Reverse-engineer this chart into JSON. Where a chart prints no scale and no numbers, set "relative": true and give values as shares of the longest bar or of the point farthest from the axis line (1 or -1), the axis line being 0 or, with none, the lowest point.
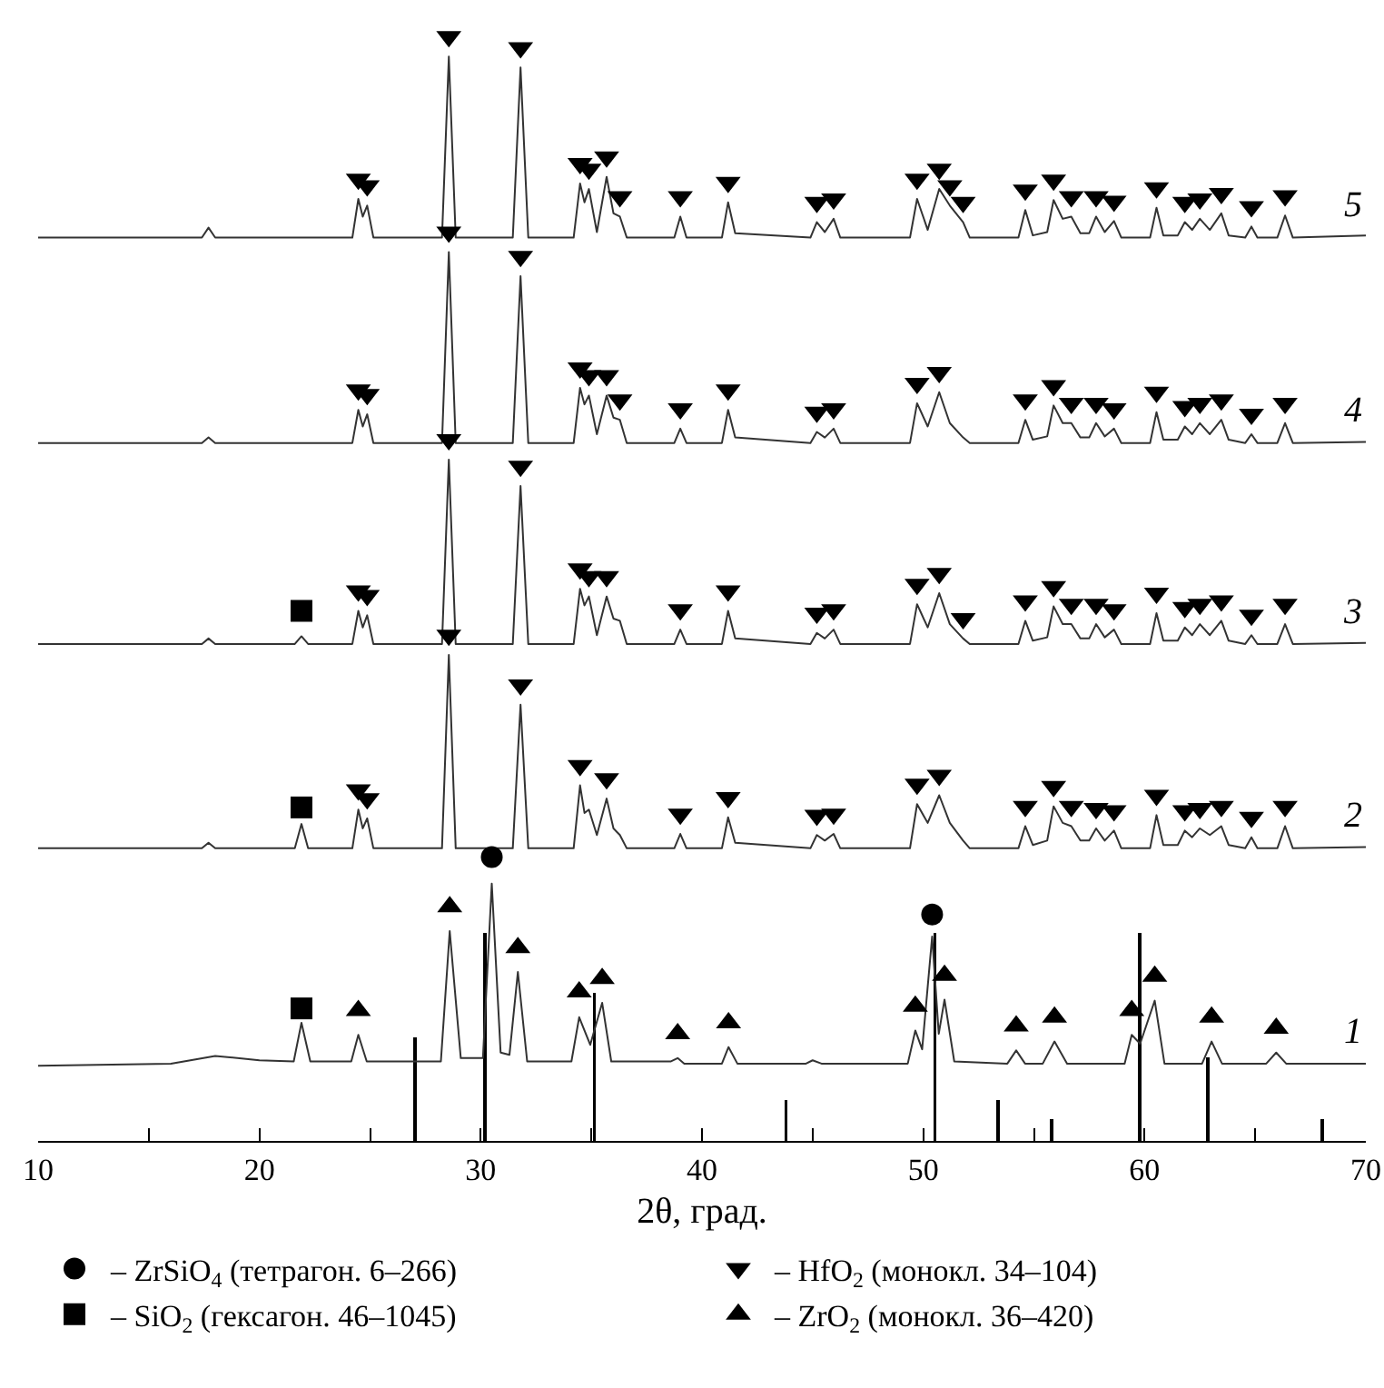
{
  "chart_data": {
    "type": "line",
    "relative": true,
    "xlabel": "2θ, град.",
    "xlim": [
      10,
      70
    ],
    "xticks": [
      10,
      {
        "value": 15,
        "label": null
      },
      20,
      {
        "value": 25,
        "label": null
      },
      30,
      {
        "value": 35,
        "label": null
      },
      40,
      {
        "value": 45,
        "label": null
      },
      50,
      {
        "value": 55,
        "label": null
      },
      60,
      {
        "value": 65,
        "label": null
      },
      70
    ],
    "grid": false,
    "legend": "bottom",
    "series": [
      {
        "name": "5",
        "color": "#333333",
        "marker": "none",
        "x": [
          10,
          17.4,
          17.7,
          18.0,
          21.6,
          21.9,
          22.2,
          24.2,
          24.47,
          24.67,
          24.87,
          25.15,
          28.25,
          28.56,
          28.87,
          31.45,
          31.8,
          32.15,
          34.2,
          34.49,
          34.69,
          34.89,
          35.25,
          35.69,
          36.0,
          36.29,
          36.6,
          38.75,
          39.02,
          39.3,
          40.9,
          41.18,
          41.5,
          44.9,
          45.19,
          45.55,
          45.95,
          46.25,
          49.4,
          49.72,
          50.2,
          50.72,
          51.2,
          51.8,
          52.1,
          54.3,
          54.61,
          54.95,
          55.6,
          55.89,
          56.3,
          56.69,
          57.1,
          57.5,
          57.81,
          58.2,
          58.62,
          58.95,
          60.25,
          60.54,
          60.85,
          61.5,
          61.82,
          62.15,
          62.5,
          62.95,
          63.47,
          63.8,
          64.55,
          64.83,
          65.1,
          66.0,
          66.35,
          66.7,
          70
        ],
        "values": [
          0.818,
          0.818,
          0.827,
          0.818,
          0.818,
          0.818,
          0.818,
          0.818,
          0.853,
          0.837,
          0.847,
          0.818,
          0.818,
          0.982,
          0.818,
          0.818,
          0.972,
          0.818,
          0.818,
          0.867,
          0.85,
          0.862,
          0.823,
          0.873,
          0.84,
          0.837,
          0.818,
          0.818,
          0.837,
          0.818,
          0.818,
          0.85,
          0.822,
          0.818,
          0.832,
          0.823,
          0.835,
          0.818,
          0.818,
          0.853,
          0.825,
          0.862,
          0.847,
          0.832,
          0.818,
          0.818,
          0.843,
          0.82,
          0.823,
          0.852,
          0.835,
          0.837,
          0.822,
          0.822,
          0.837,
          0.823,
          0.833,
          0.818,
          0.818,
          0.845,
          0.82,
          0.82,
          0.832,
          0.825,
          0.835,
          0.825,
          0.84,
          0.82,
          0.818,
          0.828,
          0.818,
          0.818,
          0.838,
          0.818,
          0.82
        ]
      },
      {
        "name": "4",
        "color": "#333333",
        "marker": "none",
        "x": [
          10,
          17.4,
          17.7,
          18.0,
          21.6,
          21.9,
          22.2,
          24.2,
          24.47,
          24.67,
          24.87,
          25.15,
          28.25,
          28.56,
          28.87,
          31.45,
          31.8,
          32.15,
          34.2,
          34.49,
          34.69,
          34.89,
          35.25,
          35.69,
          36.0,
          36.29,
          36.6,
          38.75,
          39.02,
          39.3,
          40.9,
          41.18,
          41.5,
          44.9,
          45.19,
          45.55,
          45.95,
          46.25,
          49.4,
          49.72,
          50.2,
          50.72,
          51.2,
          51.8,
          52.1,
          54.3,
          54.61,
          54.95,
          55.6,
          55.89,
          56.3,
          56.69,
          57.1,
          57.5,
          57.81,
          58.2,
          58.62,
          58.95,
          60.25,
          60.54,
          60.85,
          61.5,
          61.82,
          62.15,
          62.5,
          62.95,
          63.47,
          63.8,
          64.55,
          64.83,
          65.1,
          66.0,
          66.35,
          66.7,
          70
        ],
        "values": [
          0.632,
          0.632,
          0.637,
          0.632,
          0.632,
          0.632,
          0.632,
          0.632,
          0.662,
          0.647,
          0.658,
          0.632,
          0.632,
          0.805,
          0.632,
          0.632,
          0.783,
          0.632,
          0.632,
          0.682,
          0.667,
          0.675,
          0.64,
          0.675,
          0.655,
          0.653,
          0.632,
          0.632,
          0.645,
          0.632,
          0.632,
          0.662,
          0.637,
          0.632,
          0.642,
          0.637,
          0.645,
          0.632,
          0.632,
          0.668,
          0.647,
          0.678,
          0.65,
          0.637,
          0.632,
          0.632,
          0.653,
          0.635,
          0.638,
          0.666,
          0.65,
          0.65,
          0.637,
          0.637,
          0.65,
          0.638,
          0.645,
          0.632,
          0.632,
          0.66,
          0.635,
          0.635,
          0.647,
          0.64,
          0.65,
          0.64,
          0.653,
          0.635,
          0.632,
          0.64,
          0.632,
          0.632,
          0.65,
          0.632,
          0.633
        ]
      },
      {
        "name": "3",
        "color": "#333333",
        "marker": "none",
        "x": [
          10,
          17.4,
          17.7,
          18.0,
          21.6,
          21.9,
          22.2,
          24.2,
          24.47,
          24.67,
          24.87,
          25.15,
          28.25,
          28.56,
          28.87,
          31.45,
          31.8,
          32.15,
          34.2,
          34.49,
          34.69,
          34.89,
          35.25,
          35.69,
          36.0,
          36.29,
          36.6,
          38.75,
          39.02,
          39.3,
          40.9,
          41.18,
          41.5,
          44.9,
          45.19,
          45.55,
          45.95,
          46.25,
          49.4,
          49.72,
          50.2,
          50.72,
          51.2,
          51.8,
          52.1,
          54.3,
          54.61,
          54.95,
          55.6,
          55.89,
          56.3,
          56.69,
          57.1,
          57.5,
          57.81,
          58.2,
          58.62,
          58.95,
          60.25,
          60.54,
          60.85,
          61.5,
          61.82,
          62.15,
          62.5,
          62.95,
          63.47,
          63.8,
          64.55,
          64.83,
          65.1,
          66.0,
          66.35,
          66.7,
          70
        ],
        "values": [
          0.45,
          0.45,
          0.455,
          0.45,
          0.45,
          0.457,
          0.45,
          0.45,
          0.48,
          0.465,
          0.476,
          0.45,
          0.45,
          0.617,
          0.45,
          0.45,
          0.593,
          0.45,
          0.45,
          0.5,
          0.485,
          0.493,
          0.458,
          0.493,
          0.473,
          0.471,
          0.45,
          0.45,
          0.463,
          0.45,
          0.45,
          0.48,
          0.455,
          0.45,
          0.46,
          0.455,
          0.463,
          0.45,
          0.45,
          0.486,
          0.465,
          0.496,
          0.468,
          0.455,
          0.45,
          0.45,
          0.471,
          0.453,
          0.456,
          0.484,
          0.468,
          0.468,
          0.455,
          0.455,
          0.468,
          0.456,
          0.463,
          0.45,
          0.45,
          0.478,
          0.453,
          0.453,
          0.465,
          0.458,
          0.468,
          0.458,
          0.471,
          0.453,
          0.45,
          0.458,
          0.45,
          0.45,
          0.468,
          0.45,
          0.451
        ]
      },
      {
        "name": "2",
        "color": "#333333",
        "marker": "none",
        "x": [
          10,
          17.4,
          17.7,
          18.0,
          21.6,
          21.9,
          22.2,
          24.2,
          24.47,
          24.67,
          24.87,
          25.15,
          28.25,
          28.56,
          28.87,
          31.45,
          31.8,
          32.15,
          34.2,
          34.49,
          34.69,
          34.89,
          35.25,
          35.69,
          36.0,
          36.29,
          36.6,
          38.75,
          39.02,
          39.3,
          40.9,
          41.18,
          41.5,
          44.9,
          45.19,
          45.55,
          45.95,
          46.25,
          49.4,
          49.72,
          50.2,
          50.72,
          51.2,
          51.8,
          52.1,
          54.3,
          54.61,
          54.95,
          55.6,
          55.89,
          56.3,
          56.69,
          57.1,
          57.5,
          57.81,
          58.2,
          58.62,
          58.95,
          60.25,
          60.54,
          60.85,
          61.5,
          61.82,
          62.15,
          62.5,
          62.95,
          63.47,
          63.8,
          64.55,
          64.83,
          65.1,
          66.0,
          66.35,
          66.7,
          70
        ],
        "values": [
          0.265,
          0.265,
          0.27,
          0.265,
          0.265,
          0.287,
          0.265,
          0.265,
          0.3,
          0.283,
          0.292,
          0.265,
          0.265,
          0.44,
          0.265,
          0.265,
          0.395,
          0.265,
          0.265,
          0.322,
          0.297,
          0.3,
          0.277,
          0.31,
          0.283,
          0.277,
          0.265,
          0.265,
          0.278,
          0.265,
          0.265,
          0.293,
          0.27,
          0.265,
          0.277,
          0.272,
          0.278,
          0.265,
          0.265,
          0.305,
          0.288,
          0.313,
          0.288,
          0.272,
          0.265,
          0.265,
          0.285,
          0.268,
          0.272,
          0.303,
          0.288,
          0.285,
          0.272,
          0.272,
          0.283,
          0.272,
          0.281,
          0.265,
          0.265,
          0.295,
          0.268,
          0.268,
          0.281,
          0.275,
          0.283,
          0.277,
          0.285,
          0.268,
          0.265,
          0.275,
          0.265,
          0.265,
          0.285,
          0.265,
          0.266
        ]
      },
      {
        "name": "1",
        "color": "#333333",
        "marker": "none",
        "x": [
          10,
          16,
          18,
          20,
          21.55,
          21.9,
          22.3,
          24.15,
          24.47,
          24.85,
          28.2,
          28.6,
          29.1,
          30.1,
          30.5,
          30.9,
          31.3,
          31.68,
          32.1,
          34.1,
          34.45,
          34.95,
          35.49,
          35.9,
          38.6,
          38.9,
          39.2,
          40.9,
          41.2,
          41.6,
          44.7,
          45.0,
          45.4,
          49.3,
          49.64,
          49.95,
          50.4,
          50.7,
          50.96,
          51.4,
          53.8,
          54.2,
          54.6,
          55.4,
          55.93,
          56.5,
          59.1,
          59.42,
          59.8,
          60.46,
          60.9,
          62.6,
          63.03,
          63.5,
          65.5,
          65.95,
          66.4,
          70
        ],
        "values": [
          0.068,
          0.07,
          0.077,
          0.073,
          0.072,
          0.107,
          0.072,
          0.072,
          0.096,
          0.072,
          0.072,
          0.19,
          0.075,
          0.075,
          0.233,
          0.08,
          0.078,
          0.153,
          0.072,
          0.072,
          0.112,
          0.087,
          0.125,
          0.072,
          0.072,
          0.075,
          0.07,
          0.07,
          0.085,
          0.07,
          0.07,
          0.073,
          0.07,
          0.07,
          0.1,
          0.083,
          0.185,
          0.097,
          0.128,
          0.072,
          0.07,
          0.082,
          0.07,
          0.07,
          0.09,
          0.07,
          0.07,
          0.096,
          0.088,
          0.127,
          0.07,
          0.07,
          0.09,
          0.07,
          0.07,
          0.08,
          0.07,
          0.07
        ]
      },
      {
        "type": "bar",
        "color": "#000000",
        "x": [
          27.03,
          30.2,
          35.13,
          43.79,
          50.52,
          53.37,
          55.81,
          59.78,
          62.87,
          68.04
        ],
        "values": [
          0.094,
          0.188,
          0.134,
          0.037,
          0.188,
          0.037,
          0.02,
          0.188,
          0.076,
          0.02
        ]
      },
      {
        "name": "– ZrSiO$_{4}$ (тетрагон. 6–266)",
        "type": "scatter",
        "color": "#000000",
        "marker": "circle",
        "x": [
          30.5,
          50.4
        ],
        "values": [
          0.257,
          0.205
        ]
      },
      {
        "name": "– HfO$_{2}$ (монокл. 34–104)",
        "type": "scatter",
        "color": "#000000",
        "marker": "triangle-down",
        "x": [
          24.47,
          24.87,
          28.56,
          31.8,
          34.49,
          34.89,
          35.69,
          36.29,
          39.02,
          41.18,
          45.19,
          45.95,
          49.72,
          50.72,
          51.2,
          51.8,
          54.61,
          55.89,
          56.69,
          57.81,
          58.62,
          60.54,
          61.82,
          62.5,
          63.47,
          64.83,
          66.35,
          24.47,
          24.87,
          28.56,
          31.8,
          34.49,
          34.89,
          35.69,
          36.29,
          39.02,
          41.18,
          45.19,
          45.95,
          49.72,
          50.72,
          54.61,
          55.89,
          56.69,
          57.81,
          58.62,
          60.54,
          61.82,
          62.5,
          63.47,
          64.83,
          66.35,
          24.47,
          24.87,
          28.56,
          31.8,
          34.49,
          34.89,
          35.69,
          39.02,
          41.18,
          45.19,
          45.95,
          49.72,
          50.72,
          51.8,
          54.61,
          55.89,
          56.69,
          57.81,
          58.62,
          60.54,
          61.82,
          62.5,
          63.47,
          64.83,
          66.35,
          24.47,
          24.87,
          28.56,
          31.8,
          34.49,
          35.69,
          39.02,
          41.18,
          45.19,
          45.95,
          49.72,
          50.72,
          54.61,
          55.89,
          56.69,
          57.81,
          58.62,
          60.54,
          61.82,
          62.5,
          63.47,
          64.83,
          66.35
        ],
        "values": [
          0.871,
          0.865,
          1.0,
          0.99,
          0.885,
          0.88,
          0.891,
          0.855,
          0.855,
          0.868,
          0.85,
          0.853,
          0.871,
          0.88,
          0.865,
          0.85,
          0.861,
          0.87,
          0.855,
          0.855,
          0.851,
          0.863,
          0.85,
          0.853,
          0.858,
          0.846,
          0.856,
          0.68,
          0.676,
          0.823,
          0.801,
          0.7,
          0.693,
          0.693,
          0.671,
          0.663,
          0.68,
          0.66,
          0.663,
          0.686,
          0.696,
          0.671,
          0.684,
          0.668,
          0.668,
          0.663,
          0.678,
          0.665,
          0.668,
          0.671,
          0.658,
          0.668,
          0.498,
          0.494,
          0.635,
          0.611,
          0.518,
          0.511,
          0.511,
          0.481,
          0.498,
          0.478,
          0.481,
          0.504,
          0.514,
          0.473,
          0.489,
          0.502,
          0.486,
          0.486,
          0.481,
          0.496,
          0.483,
          0.486,
          0.489,
          0.476,
          0.486,
          0.318,
          0.31,
          0.458,
          0.413,
          0.34,
          0.328,
          0.296,
          0.311,
          0.295,
          0.296,
          0.323,
          0.331,
          0.303,
          0.321,
          0.303,
          0.301,
          0.299,
          0.313,
          0.299,
          0.301,
          0.303,
          0.293,
          0.303
        ]
      },
      {
        "name": "– SiO$_{2}$ (гексагон. 46–1045)",
        "type": "scatter",
        "color": "#000000",
        "marker": "square",
        "x": [
          21.9,
          21.9,
          21.9
        ],
        "values": [
          0.12,
          0.302,
          0.48
        ]
      },
      {
        "name": "– ZrO$_{2}$ (монокл. 36–420)",
        "type": "scatter",
        "color": "#000000",
        "marker": "triangle",
        "x": [
          24.47,
          28.6,
          31.68,
          34.45,
          35.49,
          38.9,
          41.2,
          49.64,
          50.96,
          54.2,
          55.93,
          59.42,
          60.46,
          63.03,
          65.95
        ],
        "values": [
          0.118,
          0.212,
          0.175,
          0.135,
          0.147,
          0.097,
          0.107,
          0.122,
          0.15,
          0.104,
          0.112,
          0.118,
          0.149,
          0.112,
          0.102
        ]
      }
    ]
  }
}
